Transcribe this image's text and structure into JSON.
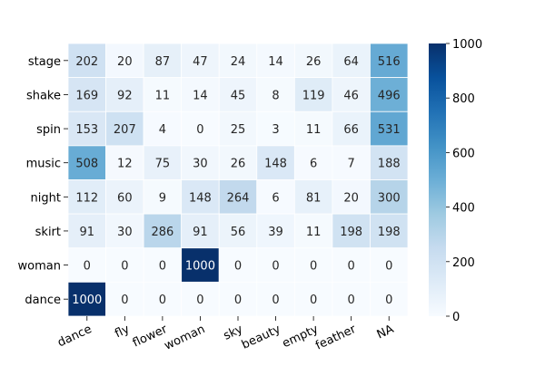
{
  "chart_data": {
    "type": "heatmap",
    "rows": [
      "stage",
      "shake",
      "spin",
      "music",
      "night",
      "skirt",
      "woman",
      "dance"
    ],
    "columns": [
      "dance",
      "fly",
      "flower",
      "woman",
      "sky",
      "beauty",
      "empty",
      "feather",
      "NA"
    ],
    "values": [
      [
        202,
        20,
        87,
        47,
        24,
        14,
        26,
        64,
        516
      ],
      [
        169,
        92,
        11,
        14,
        45,
        8,
        119,
        46,
        496
      ],
      [
        153,
        207,
        4,
        0,
        25,
        3,
        11,
        66,
        531
      ],
      [
        508,
        12,
        75,
        30,
        26,
        148,
        6,
        7,
        188
      ],
      [
        112,
        60,
        9,
        148,
        264,
        6,
        81,
        20,
        300
      ],
      [
        91,
        30,
        286,
        91,
        56,
        39,
        11,
        198,
        198
      ],
      [
        0,
        0,
        0,
        1000,
        0,
        0,
        0,
        0,
        0
      ],
      [
        1000,
        0,
        0,
        0,
        0,
        0,
        0,
        0,
        0
      ]
    ],
    "colorbar": {
      "min": 0,
      "max": 1000,
      "ticks": [
        0,
        200,
        400,
        600,
        800,
        1000
      ],
      "colormap": "Blues",
      "low_color": "#f7fbff",
      "high_color": "#08306b"
    },
    "cell_border_color": "#ffffff",
    "x_tick_rotation": "angled",
    "title": "",
    "xlabel": "",
    "ylabel": ""
  }
}
